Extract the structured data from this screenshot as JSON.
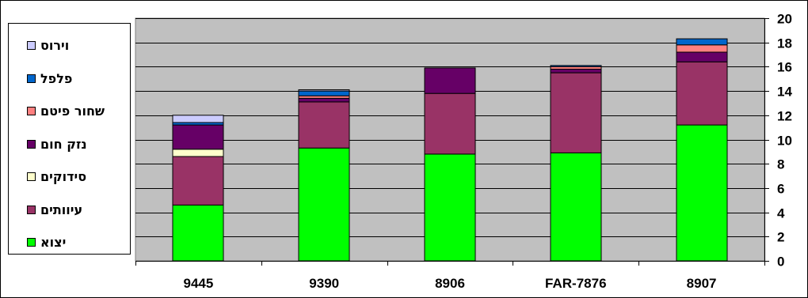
{
  "chart_data": {
    "type": "bar",
    "stacked": true,
    "categories": [
      "9445",
      "9390",
      "8906",
      "FAR-7876",
      "8907"
    ],
    "ylim": [
      0,
      20
    ],
    "yticks": [
      0,
      2,
      4,
      6,
      8,
      10,
      12,
      14,
      16,
      18,
      20
    ],
    "y_axis_side": "right",
    "grid": true,
    "legend_position": "left",
    "plot_background": "#c0c0c0",
    "series": [
      {
        "name": "יצוא",
        "color": "#00ff00",
        "values": [
          4.6,
          9.3,
          8.8,
          8.9,
          11.2
        ]
      },
      {
        "name": "עיוותים",
        "color": "#993366",
        "values": [
          4.0,
          3.8,
          5.0,
          6.6,
          5.2
        ]
      },
      {
        "name": "סידוקים",
        "color": "#ffffcc",
        "values": [
          0.6,
          0.0,
          0.0,
          0.0,
          0.0
        ]
      },
      {
        "name": "נזק חום",
        "color": "#660066",
        "values": [
          2.0,
          0.3,
          2.1,
          0.3,
          0.8
        ]
      },
      {
        "name": "שחור פיטם",
        "color": "#ff8080",
        "values": [
          0.0,
          0.2,
          0.0,
          0.2,
          0.6
        ]
      },
      {
        "name": "פלפל",
        "color": "#0066cc",
        "values": [
          0.2,
          0.4,
          0.0,
          0.1,
          0.5
        ]
      },
      {
        "name": "וירוס",
        "color": "#ccccff",
        "values": [
          0.6,
          0.1,
          0.0,
          0.0,
          0.0
        ]
      }
    ]
  }
}
